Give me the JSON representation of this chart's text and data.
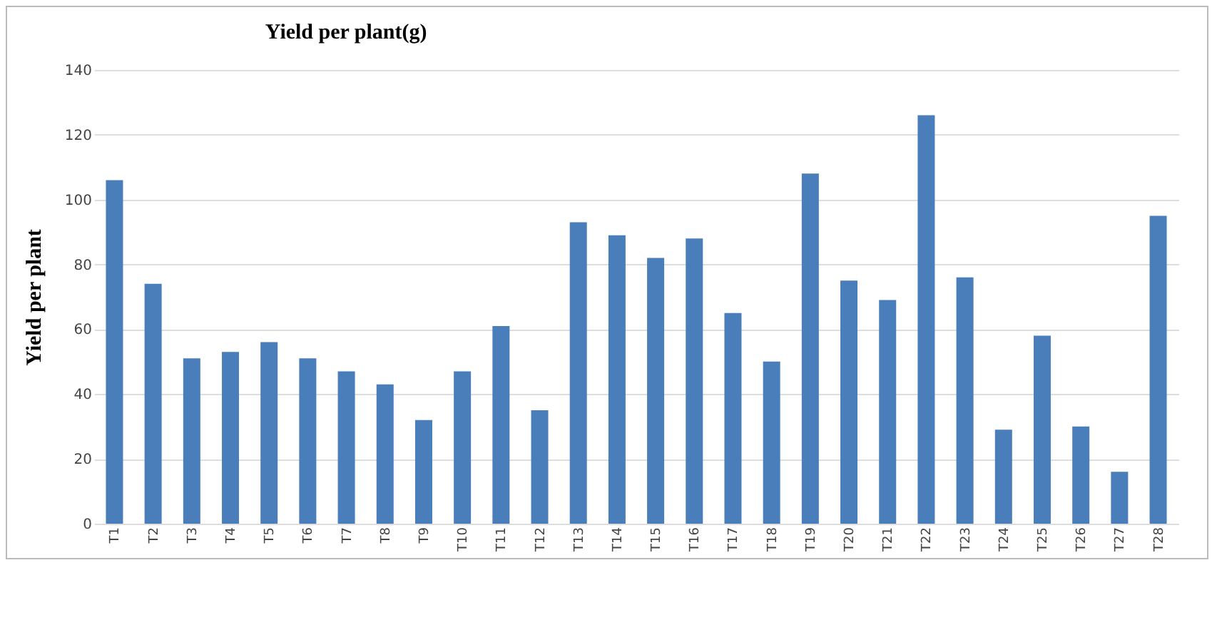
{
  "chart_data": {
    "type": "bar",
    "title": "Yield per plant(g)",
    "ylabel": "Yield per plant",
    "categories": [
      "T1",
      "T2",
      "T3",
      "T4",
      "T5",
      "T6",
      "T7",
      "T8",
      "T9",
      "T10",
      "T11",
      "T12",
      "T13",
      "T14",
      "T15",
      "T16",
      "T17",
      "T18",
      "T19",
      "T20",
      "T21",
      "T22",
      "T23",
      "T24",
      "T25",
      "T26",
      "T27",
      "T28"
    ],
    "values": [
      106,
      74,
      51,
      53,
      56,
      51,
      47,
      43,
      32,
      47,
      61,
      35,
      93,
      89,
      82,
      88,
      65,
      50,
      108,
      75,
      69,
      126,
      76,
      29,
      58,
      30,
      16,
      95
    ],
    "color": "#4a7ebb",
    "ylim": [
      0,
      140
    ],
    "yticks": [
      0,
      20,
      40,
      60,
      80,
      100,
      120,
      140
    ],
    "grid": "y"
  }
}
